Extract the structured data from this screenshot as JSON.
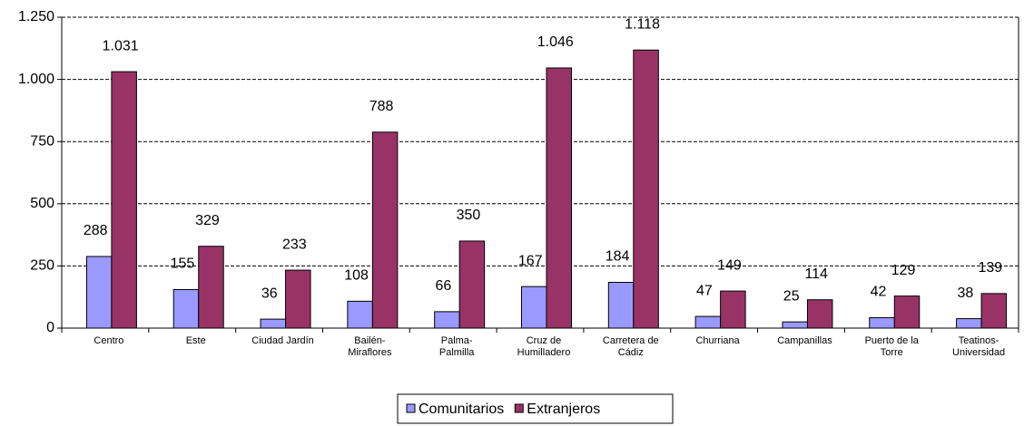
{
  "chart_data": {
    "type": "bar",
    "categories": [
      "Centro",
      "Este",
      "Ciudad Jardín",
      "Bailén-\nMiraflores",
      "Palma-\nPalmilla",
      "Cruz de\nHumilladero",
      "Carretera de\nCádiz",
      "Churriana",
      "Campanillas",
      "Puerto de la\nTorre",
      "Teatinos-\nUniversidad"
    ],
    "series": [
      {
        "name": "Comunitarios",
        "color": "#9999ff",
        "values": [
          288,
          155,
          36,
          108,
          66,
          167,
          184,
          47,
          25,
          42,
          38
        ]
      },
      {
        "name": "Extranjeros",
        "color": "#993366",
        "values": [
          1031,
          329,
          233,
          788,
          350,
          1046,
          1118,
          149,
          114,
          129,
          139
        ],
        "value_labels": [
          "1.031",
          "329",
          "233",
          "788",
          "350",
          "1.046",
          "1.118",
          "149",
          "114",
          "129",
          "139"
        ]
      }
    ],
    "ylim": [
      0,
      1250
    ],
    "yticks": [
      0,
      250,
      500,
      750,
      {
        "value": 1000,
        "label": "1.000"
      },
      {
        "value": 1250,
        "label": "1.250"
      }
    ],
    "grid": true,
    "legend": "bottom"
  }
}
